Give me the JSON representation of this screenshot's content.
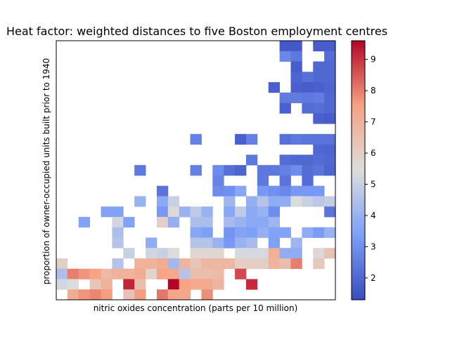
{
  "chart_data": {
    "type": "heatmap",
    "title": "Heat factor: weighted distances to five Boston employment centres",
    "xlabel": "nitric oxides concentration (parts per 10 million)",
    "ylabel": "proportion of owner-occupied units built prior to 1940",
    "colormap": "coolwarm",
    "colorbar": {
      "min": 1.3,
      "max": 9.6,
      "ticks": [
        2,
        3,
        4,
        5,
        6,
        7,
        8,
        9
      ]
    },
    "grid": false,
    "x_bins": 25,
    "y_bins": 25,
    "row_order": "top-to-bottom",
    "values": [
      [
        null,
        null,
        null,
        null,
        null,
        null,
        null,
        null,
        null,
        null,
        null,
        null,
        null,
        null,
        null,
        null,
        null,
        null,
        null,
        null,
        1.6,
        1.6,
        null,
        1.7,
        1.7
      ],
      [
        null,
        null,
        null,
        null,
        null,
        null,
        null,
        null,
        null,
        null,
        null,
        null,
        null,
        null,
        null,
        null,
        null,
        null,
        null,
        null,
        2.8,
        2.4,
        null,
        null,
        2.1
      ],
      [
        null,
        null,
        null,
        null,
        null,
        null,
        null,
        null,
        null,
        null,
        null,
        null,
        null,
        null,
        null,
        null,
        null,
        null,
        null,
        null,
        null,
        1.7,
        null,
        2.0,
        2.0
      ],
      [
        null,
        null,
        null,
        null,
        null,
        null,
        null,
        null,
        null,
        null,
        null,
        null,
        null,
        null,
        null,
        null,
        null,
        null,
        null,
        null,
        null,
        1.9,
        2.2,
        2.0,
        2.0
      ],
      [
        null,
        null,
        null,
        null,
        null,
        null,
        null,
        null,
        null,
        null,
        null,
        null,
        null,
        null,
        null,
        null,
        null,
        null,
        null,
        1.8,
        null,
        1.8,
        1.7,
        1.8,
        1.9
      ],
      [
        null,
        null,
        null,
        null,
        null,
        null,
        null,
        null,
        null,
        null,
        null,
        null,
        null,
        null,
        null,
        null,
        null,
        null,
        null,
        null,
        2.5,
        2.5,
        2.4,
        2.5,
        2.0
      ],
      [
        null,
        null,
        null,
        null,
        null,
        null,
        null,
        null,
        null,
        null,
        null,
        null,
        null,
        null,
        null,
        null,
        null,
        null,
        null,
        null,
        1.8,
        null,
        2.1,
        2.2,
        2.0
      ],
      [
        null,
        null,
        null,
        null,
        null,
        null,
        null,
        null,
        null,
        null,
        null,
        null,
        null,
        null,
        null,
        null,
        null,
        null,
        null,
        null,
        null,
        null,
        null,
        1.8,
        1.7
      ],
      [
        null,
        null,
        null,
        null,
        null,
        null,
        null,
        null,
        null,
        null,
        null,
        null,
        null,
        null,
        null,
        null,
        null,
        null,
        null,
        null,
        null,
        null,
        null,
        null,
        null
      ],
      [
        null,
        null,
        null,
        null,
        null,
        null,
        null,
        null,
        null,
        null,
        null,
        null,
        2.6,
        null,
        null,
        null,
        1.8,
        2.6,
        null,
        null,
        2.2,
        2.4,
        2.3,
        2.3,
        2.3
      ],
      [
        null,
        null,
        null,
        null,
        null,
        null,
        null,
        null,
        null,
        null,
        null,
        null,
        null,
        null,
        null,
        null,
        null,
        null,
        null,
        null,
        null,
        null,
        null,
        2.0,
        1.9
      ],
      [
        null,
        null,
        null,
        null,
        null,
        null,
        null,
        null,
        null,
        null,
        null,
        null,
        null,
        null,
        null,
        null,
        null,
        2.4,
        null,
        null,
        2.1,
        2.0,
        2.0,
        2.1,
        2.0
      ],
      [
        null,
        null,
        null,
        null,
        null,
        null,
        null,
        2.4,
        null,
        null,
        null,
        null,
        2.6,
        null,
        2.9,
        2.2,
        1.9,
        null,
        2.4,
        2.4,
        2.6,
        2.9,
        2.1,
        2.3,
        1.9
      ],
      [
        null,
        null,
        null,
        null,
        null,
        null,
        null,
        null,
        null,
        null,
        null,
        null,
        null,
        null,
        2.7,
        null,
        null,
        null,
        2.4,
        null,
        2.3,
        null,
        2.1,
        null,
        null
      ],
      [
        null,
        null,
        null,
        null,
        null,
        null,
        null,
        null,
        null,
        2.3,
        null,
        null,
        null,
        null,
        2.9,
        3.0,
        3.6,
        null,
        3.2,
        3.0,
        2.8,
        3.2,
        3.2,
        3.2,
        null
      ],
      [
        null,
        null,
        null,
        null,
        null,
        null,
        null,
        4.0,
        null,
        3.7,
        5.0,
        null,
        null,
        null,
        null,
        4.1,
        null,
        3.9,
        4.6,
        3.8,
        3.8,
        5.4,
        5.0,
        4.7,
        4.9
      ],
      [
        null,
        null,
        null,
        null,
        3.5,
        3.5,
        null,
        null,
        null,
        3.2,
        5.6,
        4.0,
        4.8,
        4.0,
        null,
        3.6,
        4.8,
        3.7,
        4.0,
        2.9,
        null,
        null,
        null,
        null,
        2.3
      ],
      [
        null,
        null,
        3.5,
        null,
        null,
        5.2,
        3.5,
        null,
        null,
        6.0,
        3.9,
        null,
        4.4,
        4.4,
        null,
        4.3,
        4.0,
        3.7,
        3.7,
        4.1,
        null,
        null,
        null,
        null,
        null
      ],
      [
        null,
        null,
        null,
        null,
        null,
        4.4,
        null,
        null,
        null,
        null,
        null,
        null,
        3.6,
        3.4,
        null,
        3.1,
        3.5,
        3.4,
        3.9,
        3.5,
        3.5,
        null,
        3.8,
        3.3,
        4.0
      ],
      [
        null,
        null,
        null,
        null,
        null,
        4.6,
        null,
        null,
        3.8,
        null,
        null,
        null,
        4.6,
        4.6,
        4.0,
        3.2,
        4.0,
        4.3,
        null,
        3.4,
        null,
        4.1,
        null,
        null,
        null
      ],
      [
        null,
        null,
        null,
        null,
        null,
        null,
        5.0,
        null,
        5.2,
        5.0,
        5.5,
        null,
        5.7,
        5.7,
        5.7,
        null,
        5.3,
        5.3,
        5.3,
        7.1,
        3.8,
        3.8,
        null,
        5.7,
        6.4
      ],
      [
        6.0,
        null,
        null,
        null,
        null,
        4.6,
        null,
        7.0,
        7.0,
        7.2,
        4.2,
        6.9,
        6.3,
        6.8,
        6.8,
        6.8,
        6.0,
        6.0,
        6.0,
        6.9,
        6.6,
        8.0,
        null,
        6.2,
        null
      ],
      [
        4.4,
        8.0,
        7.7,
        7.5,
        6.7,
        7.0,
        7.0,
        7.2,
        5.8,
        7.5,
        7.3,
        4.6,
        6.6,
        6.6,
        6.7,
        null,
        8.7,
        null,
        null,
        null,
        null,
        null,
        null,
        null,
        null
      ],
      [
        5.2,
        5.4,
        null,
        6.3,
        7.0,
        null,
        9.2,
        6.6,
        null,
        null,
        9.6,
        7.5,
        7.3,
        7.3,
        6.9,
        null,
        null,
        9.1,
        null,
        null,
        null,
        null,
        null,
        null,
        null
      ],
      [
        null,
        7.2,
        7.7,
        7.9,
        7.6,
        null,
        6.4,
        7.6,
        null,
        8.1,
        7.4,
        7.4,
        null,
        7.8,
        null,
        null,
        null,
        null,
        null,
        null,
        null,
        null,
        null,
        null,
        null
      ]
    ]
  }
}
